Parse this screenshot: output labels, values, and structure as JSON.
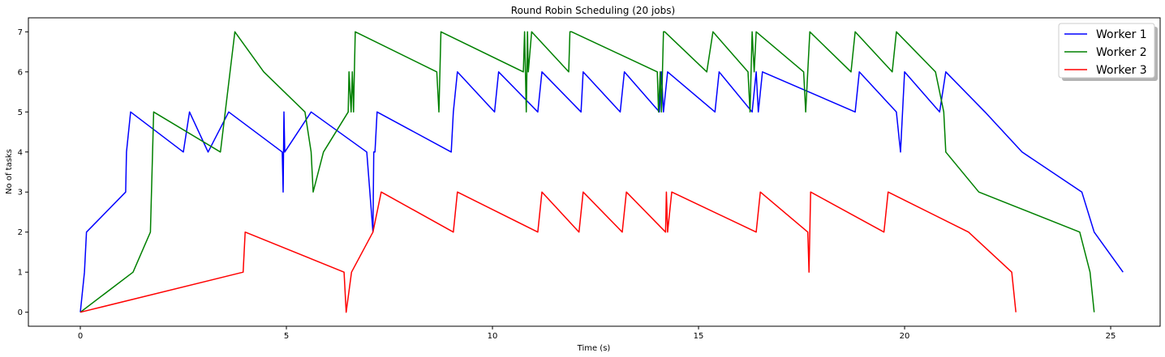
{
  "chart_data": {
    "type": "line",
    "title": "Round Robin Scheduling (20 jobs)",
    "xlabel": "Time (s)",
    "ylabel": "No of tasks",
    "xlim": [
      -1.26,
      26.2
    ],
    "ylim": [
      -0.35,
      7.35
    ],
    "xticks": [
      0,
      5,
      10,
      15,
      20,
      25
    ],
    "yticks": [
      0,
      1,
      2,
      3,
      4,
      5,
      6,
      7
    ],
    "grid": false,
    "legend_position": "top-right",
    "series": [
      {
        "name": "Worker 1",
        "color": "#0000ff",
        "x": [
          0,
          0.1,
          0.15,
          1.1,
          1.12,
          1.22,
          2.5,
          2.65,
          3.1,
          3.6,
          4.9,
          4.92,
          4.94,
          4.96,
          5.6,
          6.95,
          7.1,
          7.12,
          7.15,
          7.2,
          9.0,
          9.05,
          9.15,
          10.05,
          10.15,
          11.1,
          11.2,
          12.15,
          12.2,
          13.1,
          13.2,
          14.05,
          14.1,
          14.15,
          14.25,
          15.4,
          15.5,
          16.3,
          16.4,
          16.45,
          16.55,
          18.8,
          18.9,
          19.8,
          19.9,
          20.0,
          20.85,
          21.0,
          21.95,
          22.85,
          24.3,
          24.6,
          25.3
        ],
        "y": [
          0,
          1,
          2,
          3,
          4,
          5,
          4,
          5,
          4,
          5,
          4,
          3,
          5,
          4,
          5,
          4,
          2,
          4,
          4,
          5,
          4,
          5,
          6,
          5,
          6,
          5,
          6,
          5,
          6,
          5,
          6,
          5,
          6,
          5,
          6,
          5,
          6,
          5,
          6,
          5,
          6,
          5,
          6,
          5,
          4,
          6,
          5,
          6,
          5,
          4,
          3,
          2,
          1
        ]
      },
      {
        "name": "Worker 2",
        "color": "#008000",
        "x": [
          0,
          1.28,
          1.7,
          1.78,
          3.4,
          3.75,
          4.45,
          5.45,
          5.6,
          5.65,
          5.9,
          6.5,
          6.52,
          6.57,
          6.6,
          6.63,
          6.65,
          6.67,
          8.65,
          8.7,
          8.75,
          10.75,
          10.78,
          10.82,
          10.85,
          10.87,
          10.95,
          11.85,
          11.88,
          11.92,
          14.0,
          14.03,
          14.07,
          14.1,
          14.15,
          14.18,
          15.2,
          15.35,
          16.2,
          16.25,
          16.3,
          16.35,
          16.4,
          17.55,
          17.6,
          17.7,
          18.7,
          18.8,
          19.7,
          19.8,
          20.75,
          20.85,
          20.95,
          21.0,
          21.8,
          24.25,
          24.5,
          24.6
        ],
        "y": [
          0,
          1,
          2,
          5,
          4,
          7,
          6,
          5,
          4,
          3,
          4,
          5,
          6,
          5,
          6,
          5,
          6,
          7,
          6,
          5,
          7,
          6,
          7,
          5,
          7,
          6,
          7,
          6,
          7,
          7,
          6,
          5,
          6,
          5,
          7,
          7,
          6,
          7,
          6,
          5,
          7,
          6,
          7,
          6,
          5,
          7,
          6,
          7,
          6,
          7,
          6,
          5.5,
          5,
          4,
          3,
          2,
          1,
          0
        ]
      },
      {
        "name": "Worker 3",
        "color": "#ff0000",
        "x": [
          0,
          3.95,
          4.0,
          6.4,
          6.45,
          6.58,
          7.1,
          7.3,
          9.05,
          9.15,
          11.1,
          11.2,
          12.1,
          12.2,
          13.15,
          13.25,
          14.2,
          14.22,
          14.25,
          14.35,
          16.4,
          16.5,
          17.65,
          17.68,
          17.72,
          19.5,
          19.6,
          21.55,
          22.6,
          22.7
        ],
        "y": [
          0,
          1,
          2,
          1,
          0,
          1,
          2,
          3,
          2,
          3,
          2,
          3,
          2,
          3,
          2,
          3,
          2,
          3,
          2,
          3,
          2,
          3,
          2,
          1,
          3,
          2,
          3,
          2,
          1,
          0
        ]
      }
    ]
  }
}
